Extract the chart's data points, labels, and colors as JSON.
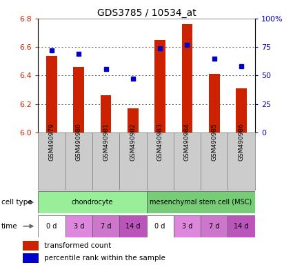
{
  "title": "GDS3785 / 10534_at",
  "samples": [
    "GSM490979",
    "GSM490980",
    "GSM490981",
    "GSM490982",
    "GSM490983",
    "GSM490984",
    "GSM490985",
    "GSM490986"
  ],
  "red_values": [
    6.54,
    6.46,
    6.26,
    6.17,
    6.65,
    6.76,
    6.41,
    6.31
  ],
  "blue_values": [
    72,
    69,
    56,
    47,
    74,
    77,
    65,
    58
  ],
  "ylim_left": [
    6.0,
    6.8
  ],
  "ylim_right": [
    0,
    100
  ],
  "yticks_left": [
    6.0,
    6.2,
    6.4,
    6.6,
    6.8
  ],
  "yticks_right": [
    0,
    25,
    50,
    75,
    100
  ],
  "ytick_labels_right": [
    "0",
    "25",
    "50",
    "75",
    "100%"
  ],
  "bar_color": "#cc2200",
  "dot_color": "#0000cc",
  "bar_bottom": 6.0,
  "cell_types": [
    {
      "label": "chondrocyte",
      "start": 0,
      "end": 4,
      "color": "#99ee99"
    },
    {
      "label": "mesenchymal stem cell (MSC)",
      "start": 4,
      "end": 8,
      "color": "#77cc77"
    }
  ],
  "time_labels": [
    "0 d",
    "3 d",
    "7 d",
    "14 d",
    "0 d",
    "3 d",
    "7 d",
    "14 d"
  ],
  "time_colors": [
    "#ffffff",
    "#dd88dd",
    "#cc77cc",
    "#bb55bb",
    "#ffffff",
    "#dd88dd",
    "#cc77cc",
    "#bb55bb"
  ],
  "legend_red": "transformed count",
  "legend_blue": "percentile rank within the sample",
  "cell_type_label": "cell type",
  "time_label": "time",
  "grid_color": "#555555",
  "bg_color": "#ffffff",
  "tick_label_color_left": "#cc2200",
  "tick_label_color_right": "#0000cc",
  "sample_box_color": "#cccccc"
}
